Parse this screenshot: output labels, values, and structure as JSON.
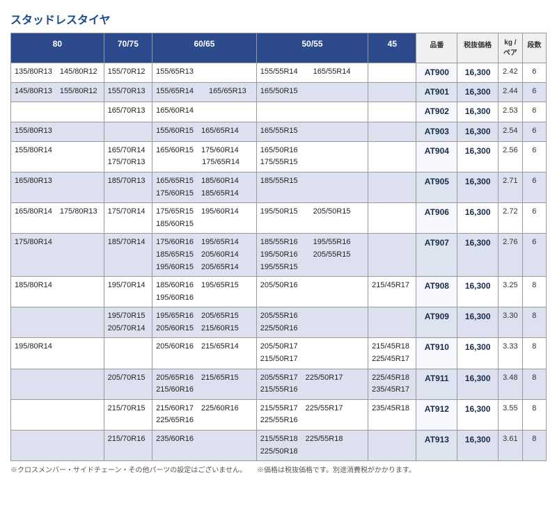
{
  "title": "スタッドレスタイヤ",
  "headers": {
    "c80": "80",
    "c7075": "70/75",
    "c6065": "60/65",
    "c5055": "50/55",
    "c45": "45",
    "part": "品番",
    "price": "税抜価格",
    "kg": "kg\n/ペア",
    "steps": "段数"
  },
  "colwidths": {
    "c80": 125,
    "c7075": 65,
    "c6065": 140,
    "c5055": 150,
    "c45": 62,
    "part": 55,
    "price": 55,
    "kg": 32,
    "steps": 32
  },
  "rows": [
    {
      "c80": "135/80R13　145/80R12",
      "c7075": "155/70R12",
      "c6065": "155/65R13",
      "c5055": "155/55R14　　165/55R14",
      "c45": "",
      "part": "AT900",
      "price": "16,300",
      "kg": "2.42",
      "steps": "6",
      "shade": "odd"
    },
    {
      "c80": "145/80R13　155/80R12",
      "c7075": "155/70R13",
      "c6065": "155/65R14　　165/65R13",
      "c5055": "165/50R15",
      "c45": "",
      "part": "AT901",
      "price": "16,300",
      "kg": "2.44",
      "steps": "6",
      "shade": "even"
    },
    {
      "c80": "",
      "c7075": "165/70R13",
      "c6065": "165/60R14",
      "c5055": "",
      "c45": "",
      "part": "AT902",
      "price": "16,300",
      "kg": "2.53",
      "steps": "6",
      "shade": "odd"
    },
    {
      "c80": "155/80R13",
      "c7075": "",
      "c6065": "155/60R15　165/65R14",
      "c5055": "165/55R15",
      "c45": "",
      "part": "AT903",
      "price": "16,300",
      "kg": "2.54",
      "steps": "6",
      "shade": "even"
    },
    {
      "c80": "155/80R14",
      "c7075": "165/70R14\n175/70R13",
      "c6065": "165/60R15　175/60R14\n　　　　　　175/65R14",
      "c5055": "165/50R16\n175/55R15",
      "c45": "",
      "part": "AT904",
      "price": "16,300",
      "kg": "2.56",
      "steps": "6",
      "shade": "odd"
    },
    {
      "c80": "165/80R13",
      "c7075": "185/70R13",
      "c6065": "165/65R15　185/60R14\n175/60R15　185/65R14",
      "c5055": "185/55R15",
      "c45": "",
      "part": "AT905",
      "price": "16,300",
      "kg": "2.71",
      "steps": "6",
      "shade": "even"
    },
    {
      "c80": "165/80R14　175/80R13",
      "c7075": "175/70R14",
      "c6065": "175/65R15　195/60R14\n185/60R15",
      "c5055": "195/50R15　　205/50R15",
      "c45": "",
      "part": "AT906",
      "price": "16,300",
      "kg": "2.72",
      "steps": "6",
      "shade": "odd"
    },
    {
      "c80": "175/80R14",
      "c7075": "185/70R14",
      "c6065": "175/60R16　195/65R14\n185/65R15　205/60R14\n195/60R15　205/65R14",
      "c5055": "185/55R16　　195/55R16\n195/50R16　　205/55R15\n195/55R15",
      "c45": "",
      "part": "AT907",
      "price": "16,300",
      "kg": "2.76",
      "steps": "6",
      "shade": "even"
    },
    {
      "c80": "185/80R14",
      "c7075": "195/70R14",
      "c6065": "185/60R16　195/65R15\n195/60R16",
      "c5055": "205/50R16",
      "c45": "215/45R17",
      "part": "AT908",
      "price": "16,300",
      "kg": "3.25",
      "steps": "8",
      "shade": "odd"
    },
    {
      "c80": "",
      "c7075": "195/70R15\n205/70R14",
      "c6065": "195/65R16　205/65R15\n205/60R15　215/60R15",
      "c5055": "205/55R16\n225/50R16",
      "c45": "",
      "part": "AT909",
      "price": "16,300",
      "kg": "3.30",
      "steps": "8",
      "shade": "even"
    },
    {
      "c80": "195/80R14",
      "c7075": "",
      "c6065": "205/60R16　215/65R14",
      "c5055": "205/50R17\n215/50R17",
      "c45": "215/45R18\n225/45R17",
      "part": "AT910",
      "price": "16,300",
      "kg": "3.33",
      "steps": "8",
      "shade": "odd"
    },
    {
      "c80": "",
      "c7075": "205/70R15",
      "c6065": "205/65R16　215/65R15\n215/60R16",
      "c5055": "205/55R17　225/50R17\n215/55R16",
      "c45": "225/45R18\n235/45R17",
      "part": "AT911",
      "price": "16,300",
      "kg": "3.48",
      "steps": "8",
      "shade": "even"
    },
    {
      "c80": "",
      "c7075": "215/70R15",
      "c6065": "215/60R17　225/60R16\n225/65R16",
      "c5055": "215/55R17　225/55R17\n225/55R16",
      "c45": "235/45R18",
      "part": "AT912",
      "price": "16,300",
      "kg": "3.55",
      "steps": "8",
      "shade": "odd"
    },
    {
      "c80": "",
      "c7075": "215/70R16",
      "c6065": "235/60R16",
      "c5055": "215/55R18　225/55R18\n225/50R18",
      "c45": "",
      "part": "AT913",
      "price": "16,300",
      "kg": "3.61",
      "steps": "8",
      "shade": "even"
    }
  ],
  "footnote": "※クロスメンバー・サイドチェーン・その他パーツの設定はございません。　　※価格は税抜価格です。別途消費税がかかります。"
}
